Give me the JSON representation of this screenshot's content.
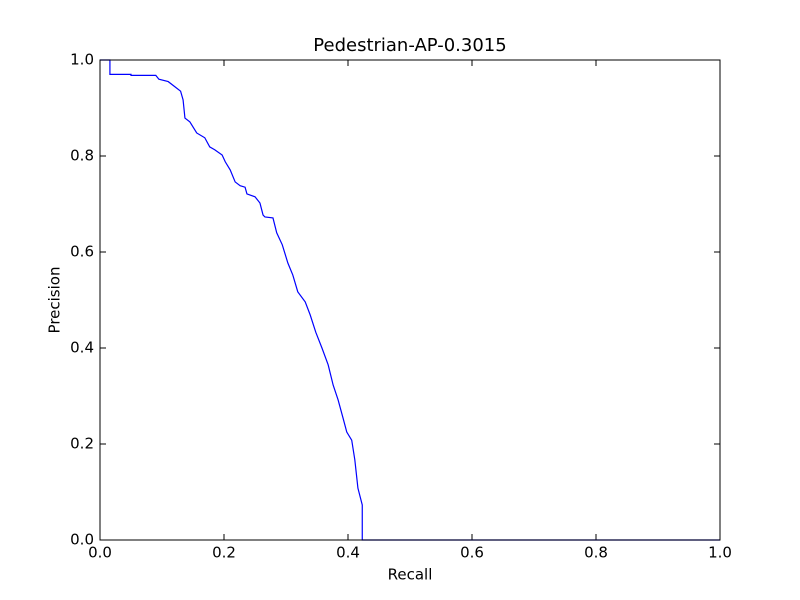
{
  "chart_data": {
    "type": "line",
    "title": "Pedestrian-AP-0.3015",
    "x_label": "Recall",
    "y_label": "Precision",
    "color": "#0000ff",
    "x": [
      0,
      0.016,
      0.016,
      0.05,
      0.05,
      0.09,
      0.095,
      0.11,
      0.12,
      0.13,
      0.134,
      0.137,
      0.145,
      0.156,
      0.169,
      0.177,
      0.185,
      0.197,
      0.202,
      0.21,
      0.218,
      0.226,
      0.234,
      0.237,
      0.25,
      0.258,
      0.263,
      0.266,
      0.279,
      0.285,
      0.294,
      0.303,
      0.311,
      0.319,
      0.331,
      0.339,
      0.348,
      0.358,
      0.368,
      0.376,
      0.384,
      0.392,
      0.398,
      0.406,
      0.411,
      0.416,
      0.423,
      0.423,
      1.0
    ],
    "values": [
      1.0,
      1.0,
      0.97,
      0.97,
      0.968,
      0.968,
      0.96,
      0.955,
      0.945,
      0.935,
      0.917,
      0.879,
      0.871,
      0.848,
      0.838,
      0.819,
      0.813,
      0.802,
      0.788,
      0.771,
      0.746,
      0.738,
      0.735,
      0.721,
      0.715,
      0.702,
      0.677,
      0.673,
      0.671,
      0.64,
      0.615,
      0.577,
      0.552,
      0.517,
      0.496,
      0.469,
      0.433,
      0.4,
      0.365,
      0.323,
      0.292,
      0.254,
      0.225,
      0.208,
      0.167,
      0.108,
      0.073,
      0,
      0
    ],
    "xlim": [
      0,
      1
    ],
    "ylim": [
      0,
      1
    ],
    "xticks": [
      {
        "value": 0,
        "label": "0.0"
      },
      0.2,
      0.4,
      0.6,
      0.8,
      {
        "value": 1,
        "label": "1.0"
      }
    ],
    "yticks": [
      {
        "value": 0,
        "label": "0.0"
      },
      0.2,
      0.4,
      0.6,
      0.8,
      {
        "value": 1,
        "label": "1.0"
      }
    ]
  }
}
